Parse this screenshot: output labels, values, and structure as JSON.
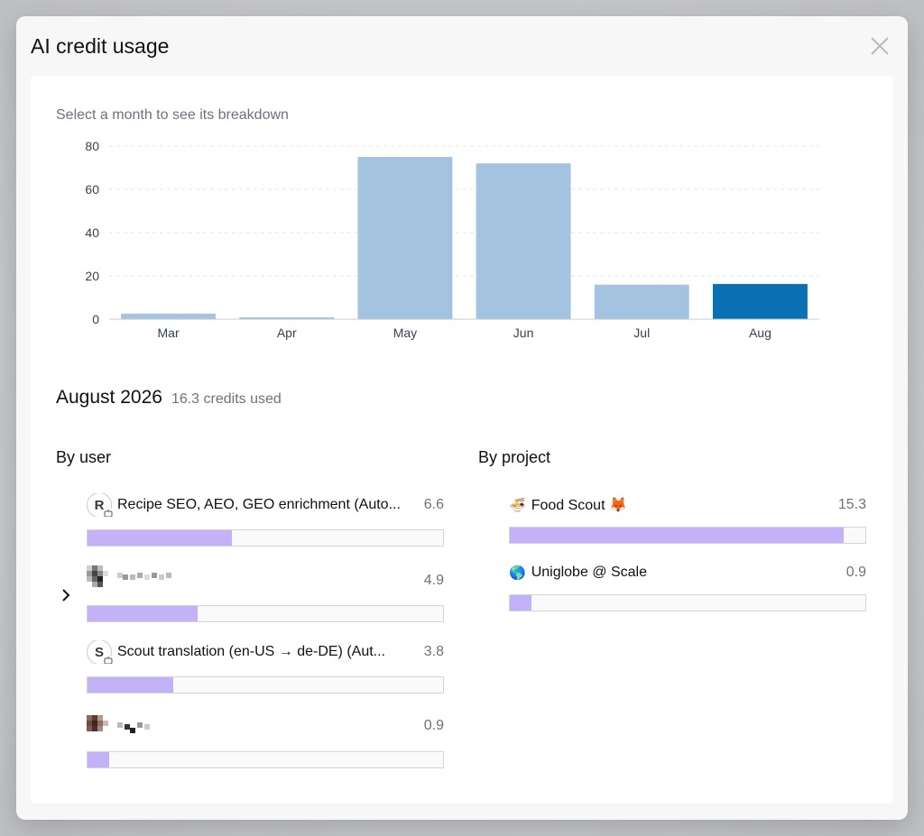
{
  "dialog": {
    "title": "AI credit usage"
  },
  "chart_hint": "Select a month to see its breakdown",
  "chart_data": {
    "type": "bar",
    "categories": [
      "Mar",
      "Apr",
      "May",
      "Jun",
      "Jul",
      "Aug"
    ],
    "values": [
      2.6,
      0.9,
      75,
      72,
      16,
      16.3
    ],
    "selected": "Aug",
    "ylim": [
      0,
      80
    ],
    "yticks": [
      0,
      20,
      40,
      60,
      80
    ],
    "grid": true,
    "colors": {
      "bar": "#a4c3e0",
      "selected_bar": "#0a6fb3"
    }
  },
  "summary": {
    "month": "August 2026",
    "credits": "16.3 credits used"
  },
  "by_user": {
    "title": "By user",
    "max": 16.3,
    "items": [
      {
        "avatar": "R",
        "label": "Recipe SEO, AEO, GEO enrichment (Auto...",
        "value": "6.6",
        "fraction": 0.405
      },
      {
        "avatar": "",
        "label": "",
        "value": "4.9",
        "fraction": 0.31
      },
      {
        "avatar": "S",
        "label": "Scout translation (en-US → de-DE) (Aut...",
        "value": "3.8",
        "fraction": 0.24
      },
      {
        "avatar": "",
        "label": "",
        "value": "0.9",
        "fraction": 0.06
      }
    ]
  },
  "by_project": {
    "title": "By project",
    "items": [
      {
        "icon": "🍜",
        "label": "Food Scout 🦊",
        "value": "15.3",
        "fraction": 0.94
      },
      {
        "icon": "🌎",
        "label": "Uniglobe @ Scale",
        "value": "0.9",
        "fraction": 0.06
      }
    ]
  },
  "colors": {
    "usage_bar": "#c4b2f8",
    "accent": "#0a6fb3"
  }
}
